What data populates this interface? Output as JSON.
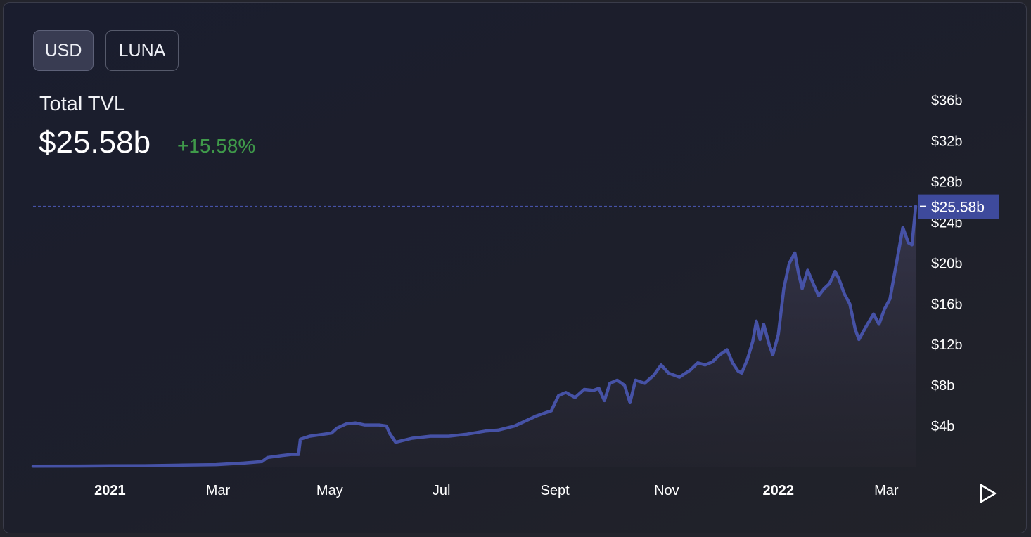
{
  "toggles": {
    "usd_label": "USD",
    "luna_label": "LUNA",
    "active": "USD"
  },
  "header": {
    "title": "Total TVL",
    "value": "$25.58b",
    "change": "+15.58%"
  },
  "colors": {
    "line": "#4652a6",
    "change_positive": "#3f9a4a",
    "marker_bg": "#3e4a9c",
    "text": "#ffffff"
  },
  "controls": {
    "play_icon": "play-icon"
  },
  "chart_data": {
    "type": "area",
    "title": "Total TVL",
    "x_tick_labels": [
      "2021",
      "Mar",
      "May",
      "Jul",
      "Sept",
      "Nov",
      "2022",
      "Mar"
    ],
    "y_tick_labels": [
      "$4b",
      "$8b",
      "$12b",
      "$16b",
      "$20b",
      "$24b",
      "$28b",
      "$32b",
      "$36b"
    ],
    "ylim": [
      0,
      36
    ],
    "y_unit": "billions USD",
    "current_value": 25.58,
    "current_value_label": "$25.58b",
    "grid": false,
    "series": [
      {
        "values": [
          [
            "2020-11-20",
            0.05
          ],
          [
            "2020-12-15",
            0.06
          ],
          [
            "2021-01-01",
            0.08
          ],
          [
            "2021-01-20",
            0.1
          ],
          [
            "2021-02-10",
            0.15
          ],
          [
            "2021-02-28",
            0.2
          ],
          [
            "2021-03-15",
            0.35
          ],
          [
            "2021-03-25",
            0.5
          ],
          [
            "2021-03-28",
            0.9
          ],
          [
            "2021-04-05",
            1.1
          ],
          [
            "2021-04-10",
            1.2
          ],
          [
            "2021-04-14",
            1.2
          ],
          [
            "2021-04-15",
            2.7
          ],
          [
            "2021-04-20",
            3.0
          ],
          [
            "2021-04-28",
            3.2
          ],
          [
            "2021-05-02",
            3.3
          ],
          [
            "2021-05-05",
            3.8
          ],
          [
            "2021-05-10",
            4.2
          ],
          [
            "2021-05-15",
            4.3
          ],
          [
            "2021-05-20",
            4.1
          ],
          [
            "2021-05-28",
            4.1
          ],
          [
            "2021-06-01",
            4.0
          ],
          [
            "2021-06-03",
            3.2
          ],
          [
            "2021-06-06",
            2.4
          ],
          [
            "2021-06-15",
            2.8
          ],
          [
            "2021-06-25",
            3.0
          ],
          [
            "2021-07-05",
            3.0
          ],
          [
            "2021-07-15",
            3.2
          ],
          [
            "2021-07-25",
            3.5
          ],
          [
            "2021-08-01",
            3.6
          ],
          [
            "2021-08-10",
            4.0
          ],
          [
            "2021-08-16",
            4.5
          ],
          [
            "2021-08-22",
            5.0
          ],
          [
            "2021-08-30",
            5.5
          ],
          [
            "2021-09-03",
            7.0
          ],
          [
            "2021-09-07",
            7.3
          ],
          [
            "2021-09-12",
            6.8
          ],
          [
            "2021-09-17",
            7.6
          ],
          [
            "2021-09-22",
            7.5
          ],
          [
            "2021-09-25",
            7.7
          ],
          [
            "2021-09-28",
            6.5
          ],
          [
            "2021-10-01",
            8.2
          ],
          [
            "2021-10-05",
            8.5
          ],
          [
            "2021-10-09",
            8.0
          ],
          [
            "2021-10-12",
            6.3
          ],
          [
            "2021-10-15",
            8.5
          ],
          [
            "2021-10-20",
            8.2
          ],
          [
            "2021-10-25",
            9.0
          ],
          [
            "2021-10-29",
            10.0
          ],
          [
            "2021-11-02",
            9.2
          ],
          [
            "2021-11-08",
            8.8
          ],
          [
            "2021-11-14",
            9.5
          ],
          [
            "2021-11-18",
            10.2
          ],
          [
            "2021-11-22",
            10.0
          ],
          [
            "2021-11-26",
            10.3
          ],
          [
            "2021-11-30",
            11.0
          ],
          [
            "2021-12-04",
            11.5
          ],
          [
            "2021-12-07",
            10.2
          ],
          [
            "2021-12-10",
            9.4
          ],
          [
            "2021-12-12",
            9.2
          ],
          [
            "2021-12-15",
            10.5
          ],
          [
            "2021-12-18",
            12.3
          ],
          [
            "2021-12-20",
            14.3
          ],
          [
            "2021-12-22",
            12.5
          ],
          [
            "2021-12-24",
            14.0
          ],
          [
            "2021-12-27",
            12.0
          ],
          [
            "2021-12-29",
            11.0
          ],
          [
            "2022-01-01",
            13.0
          ],
          [
            "2022-01-04",
            17.5
          ],
          [
            "2022-01-07",
            20.0
          ],
          [
            "2022-01-10",
            21.0
          ],
          [
            "2022-01-12",
            19.0
          ],
          [
            "2022-01-14",
            17.5
          ],
          [
            "2022-01-17",
            19.3
          ],
          [
            "2022-01-20",
            18.0
          ],
          [
            "2022-01-23",
            16.8
          ],
          [
            "2022-01-26",
            17.5
          ],
          [
            "2022-01-29",
            18.0
          ],
          [
            "2022-02-01",
            19.2
          ],
          [
            "2022-02-03",
            18.5
          ],
          [
            "2022-02-06",
            17.0
          ],
          [
            "2022-02-09",
            16.0
          ],
          [
            "2022-02-12",
            13.5
          ],
          [
            "2022-02-14",
            12.5
          ],
          [
            "2022-02-18",
            13.8
          ],
          [
            "2022-02-22",
            15.0
          ],
          [
            "2022-02-25",
            14.0
          ],
          [
            "2022-02-28",
            15.5
          ],
          [
            "2022-03-03",
            16.5
          ],
          [
            "2022-03-07",
            20.5
          ],
          [
            "2022-03-10",
            23.5
          ],
          [
            "2022-03-13",
            22.0
          ],
          [
            "2022-03-15",
            21.8
          ],
          [
            "2022-03-17",
            25.58
          ]
        ]
      }
    ]
  }
}
